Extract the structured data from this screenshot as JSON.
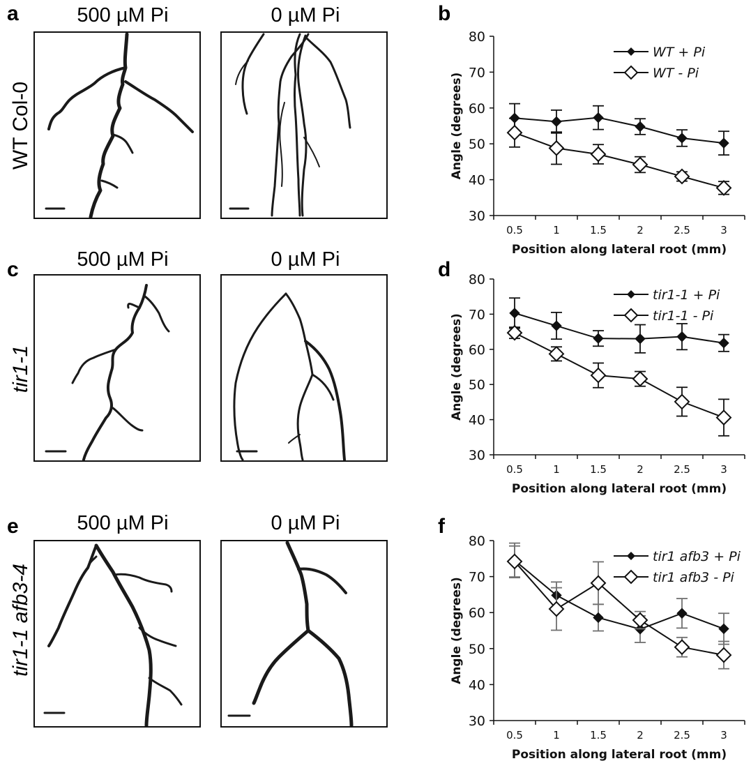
{
  "panels": {
    "a": "a",
    "b": "b",
    "c": "c",
    "d": "d",
    "e": "e",
    "f": "f"
  },
  "columns": {
    "pi_500": "500 µM Pi",
    "pi_0": "0 µM Pi"
  },
  "rows": {
    "wt": "WT Col-0",
    "tir1": "tir1-1",
    "tir1afb3": "tir1-1 afb3-4"
  },
  "chart_data": [
    {
      "panel": "b",
      "type": "line",
      "xlabel": "Position along lateral root (mm)",
      "ylabel": "Angle (degrees)",
      "categories": [
        "0.5",
        "1",
        "1.5",
        "2",
        "2.5",
        "3"
      ],
      "ylim": [
        30,
        80
      ],
      "yticks": [
        30,
        40,
        50,
        60,
        70,
        80
      ],
      "legend_position": "top-right",
      "series": [
        {
          "name": "WT  + Pi",
          "marker": "filled-diamond",
          "values": [
            57.2,
            56.2,
            57.3,
            54.8,
            51.6,
            50.2
          ],
          "errors": [
            4.0,
            3.2,
            3.3,
            2.2,
            2.3,
            3.3
          ]
        },
        {
          "name": "WT  - Pi",
          "marker": "open-diamond",
          "values": [
            53.1,
            48.8,
            47.1,
            44.2,
            40.9,
            37.7
          ],
          "errors": [
            4.0,
            4.5,
            2.7,
            2.2,
            1.3,
            1.8
          ]
        }
      ]
    },
    {
      "panel": "d",
      "type": "line",
      "xlabel": "Position along lateral root (mm)",
      "ylabel": "Angle (degrees)",
      "categories": [
        "0.5",
        "1",
        "1.5",
        "2",
        "2.5",
        "3"
      ],
      "ylim": [
        30,
        80
      ],
      "yticks": [
        30,
        40,
        50,
        60,
        70,
        80
      ],
      "legend_position": "top-right",
      "series": [
        {
          "name": "tir1-1 + Pi",
          "marker": "filled-diamond",
          "values": [
            70.3,
            66.7,
            63.1,
            63.0,
            63.6,
            61.8
          ],
          "errors": [
            4.3,
            3.8,
            2.2,
            4.0,
            3.7,
            2.4
          ]
        },
        {
          "name": "tir1-1 - Pi",
          "marker": "open-diamond",
          "values": [
            64.7,
            58.7,
            52.6,
            51.6,
            45.1,
            40.6
          ],
          "errors": [
            1.6,
            2.0,
            3.5,
            2.1,
            4.1,
            5.2
          ]
        }
      ]
    },
    {
      "panel": "f",
      "type": "line",
      "xlabel": "Position along lateral root (mm)",
      "ylabel": "Angle (degrees)",
      "categories": [
        "0.5",
        "1",
        "1.5",
        "2",
        "2.5",
        "3"
      ],
      "ylim": [
        30,
        80
      ],
      "yticks": [
        30,
        40,
        50,
        60,
        70,
        80
      ],
      "legend_position": "top-right",
      "series": [
        {
          "name": "tir1 afb3 + Pi",
          "marker": "filled-diamond",
          "values": [
            74.5,
            64.8,
            58.6,
            55.4,
            59.8,
            55.5
          ],
          "errors": [
            4.8,
            3.7,
            3.7,
            3.7,
            4.1,
            4.3
          ]
        },
        {
          "name": "tir1 afb3 - Pi",
          "marker": "open-diamond",
          "values": [
            74.2,
            61.0,
            68.2,
            57.9,
            50.4,
            48.2
          ],
          "errors": [
            4.3,
            5.9,
            5.9,
            2.4,
            2.7,
            3.8
          ]
        }
      ]
    }
  ]
}
